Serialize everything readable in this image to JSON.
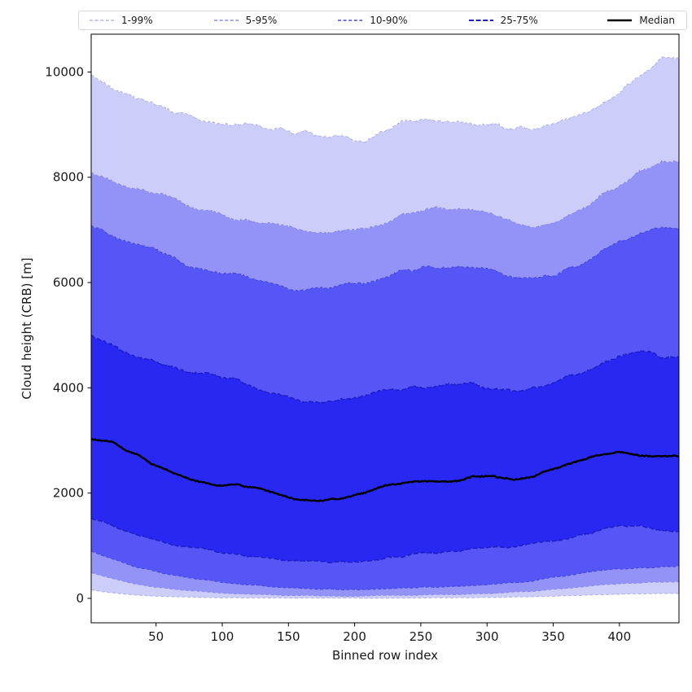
{
  "chart_data": {
    "type": "area",
    "subtype": "percentile-fan",
    "title": "",
    "xlabel": "Binned row index",
    "ylabel": "Cloud height (CRB) [m]",
    "xlim": [
      1,
      445
    ],
    "ylim": [
      0,
      10000
    ],
    "xticks": [
      50,
      100,
      150,
      200,
      250,
      300,
      350,
      400
    ],
    "yticks": [
      0,
      2000,
      4000,
      6000,
      8000,
      10000
    ],
    "grid": false,
    "legend_position": "top",
    "axis_color": "#000000",
    "background_color": "#ffffff",
    "x_anchors": [
      1,
      16,
      32,
      48,
      64,
      80,
      96,
      112,
      128,
      144,
      160,
      176,
      192,
      208,
      224,
      240,
      256,
      272,
      288,
      304,
      320,
      336,
      352,
      368,
      384,
      400,
      416,
      432,
      445
    ],
    "series": [
      {
        "name": "p1",
        "percentile": 1,
        "jitter": 4,
        "values": [
          160,
          110,
          70,
          45,
          30,
          22,
          16,
          12,
          9,
          7,
          6,
          5,
          5,
          5,
          6,
          7,
          9,
          11,
          14,
          18,
          25,
          33,
          45,
          58,
          70,
          80,
          85,
          90,
          95
        ]
      },
      {
        "name": "p5",
        "percentile": 5,
        "jitter": 8,
        "values": [
          490,
          390,
          290,
          220,
          170,
          140,
          110,
          90,
          75,
          62,
          55,
          50,
          48,
          45,
          52,
          60,
          68,
          75,
          85,
          95,
          115,
          140,
          175,
          215,
          255,
          280,
          295,
          310,
          320
        ]
      },
      {
        "name": "p10",
        "percentile": 10,
        "jitter": 13,
        "values": [
          900,
          760,
          620,
          520,
          430,
          370,
          320,
          280,
          240,
          210,
          190,
          180,
          170,
          165,
          180,
          195,
          210,
          225,
          245,
          265,
          300,
          340,
          400,
          460,
          520,
          560,
          580,
          600,
          620
        ]
      },
      {
        "name": "p25",
        "percentile": 25,
        "jitter": 24,
        "values": [
          1520,
          1400,
          1250,
          1110,
          1000,
          950,
          880,
          820,
          780,
          740,
          710,
          700,
          690,
          700,
          760,
          820,
          860,
          890,
          930,
          960,
          990,
          1040,
          1100,
          1180,
          1290,
          1400,
          1380,
          1310,
          1280
        ]
      },
      {
        "name": "median",
        "percentile": 50,
        "jitter": 22,
        "values": [
          3010,
          2970,
          2770,
          2550,
          2380,
          2240,
          2150,
          2150,
          2080,
          1960,
          1870,
          1860,
          1900,
          1990,
          2170,
          2200,
          2210,
          2230,
          2290,
          2340,
          2270,
          2320,
          2480,
          2600,
          2700,
          2770,
          2720,
          2700,
          2690
        ]
      },
      {
        "name": "p75",
        "percentile": 75,
        "jitter": 38,
        "values": [
          5000,
          4840,
          4640,
          4490,
          4360,
          4290,
          4250,
          4150,
          4000,
          3860,
          3730,
          3700,
          3780,
          3860,
          3930,
          3990,
          4020,
          4060,
          4090,
          3970,
          3930,
          3990,
          4110,
          4260,
          4430,
          4620,
          4700,
          4580,
          4610
        ]
      },
      {
        "name": "p90",
        "percentile": 90,
        "jitter": 40,
        "values": [
          7060,
          6920,
          6750,
          6640,
          6450,
          6260,
          6180,
          6140,
          6050,
          5930,
          5870,
          5890,
          5950,
          6000,
          6130,
          6240,
          6300,
          6320,
          6280,
          6210,
          6100,
          6060,
          6160,
          6320,
          6520,
          6800,
          6950,
          7030,
          7060
        ]
      },
      {
        "name": "p95",
        "percentile": 95,
        "jitter": 42,
        "values": [
          8060,
          7920,
          7780,
          7700,
          7560,
          7420,
          7300,
          7200,
          7150,
          7100,
          7000,
          6960,
          7000,
          6990,
          7160,
          7300,
          7390,
          7410,
          7360,
          7320,
          7160,
          7060,
          7160,
          7360,
          7620,
          7850,
          8100,
          8340,
          8300
        ]
      },
      {
        "name": "p99",
        "percentile": 99,
        "jitter": 55,
        "values": [
          9960,
          9720,
          9500,
          9360,
          9240,
          9150,
          9060,
          9000,
          8950,
          8900,
          8860,
          8800,
          8780,
          8680,
          8920,
          9080,
          9060,
          9050,
          9020,
          9000,
          8950,
          8880,
          9000,
          9160,
          9360,
          9620,
          9950,
          10280,
          10230
        ]
      }
    ],
    "bands": [
      {
        "label": "1-99%",
        "lower": "p1",
        "upper": "p99",
        "fill": "#cdcdfa",
        "edge": "#b4b4ef",
        "dash": "4 2.6",
        "edge_width": 1.1
      },
      {
        "label": "5-95%",
        "lower": "p5",
        "upper": "p95",
        "fill": "#9393f7",
        "edge": "#8a8aec",
        "dash": "4 2.6",
        "edge_width": 1.1
      },
      {
        "label": "10-90%",
        "lower": "p10",
        "upper": "p90",
        "fill": "#5656f6",
        "edge": "#4747df",
        "dash": "4 2.6",
        "edge_width": 1.1
      },
      {
        "label": "25-75%",
        "lower": "p25",
        "upper": "p75",
        "fill": "#2828f2",
        "edge": "#1e1ec9",
        "dash": "6 2.6",
        "edge_width": 1.5
      }
    ],
    "median_line": {
      "label": "Median",
      "color": "#000000",
      "width": 2.5
    }
  }
}
